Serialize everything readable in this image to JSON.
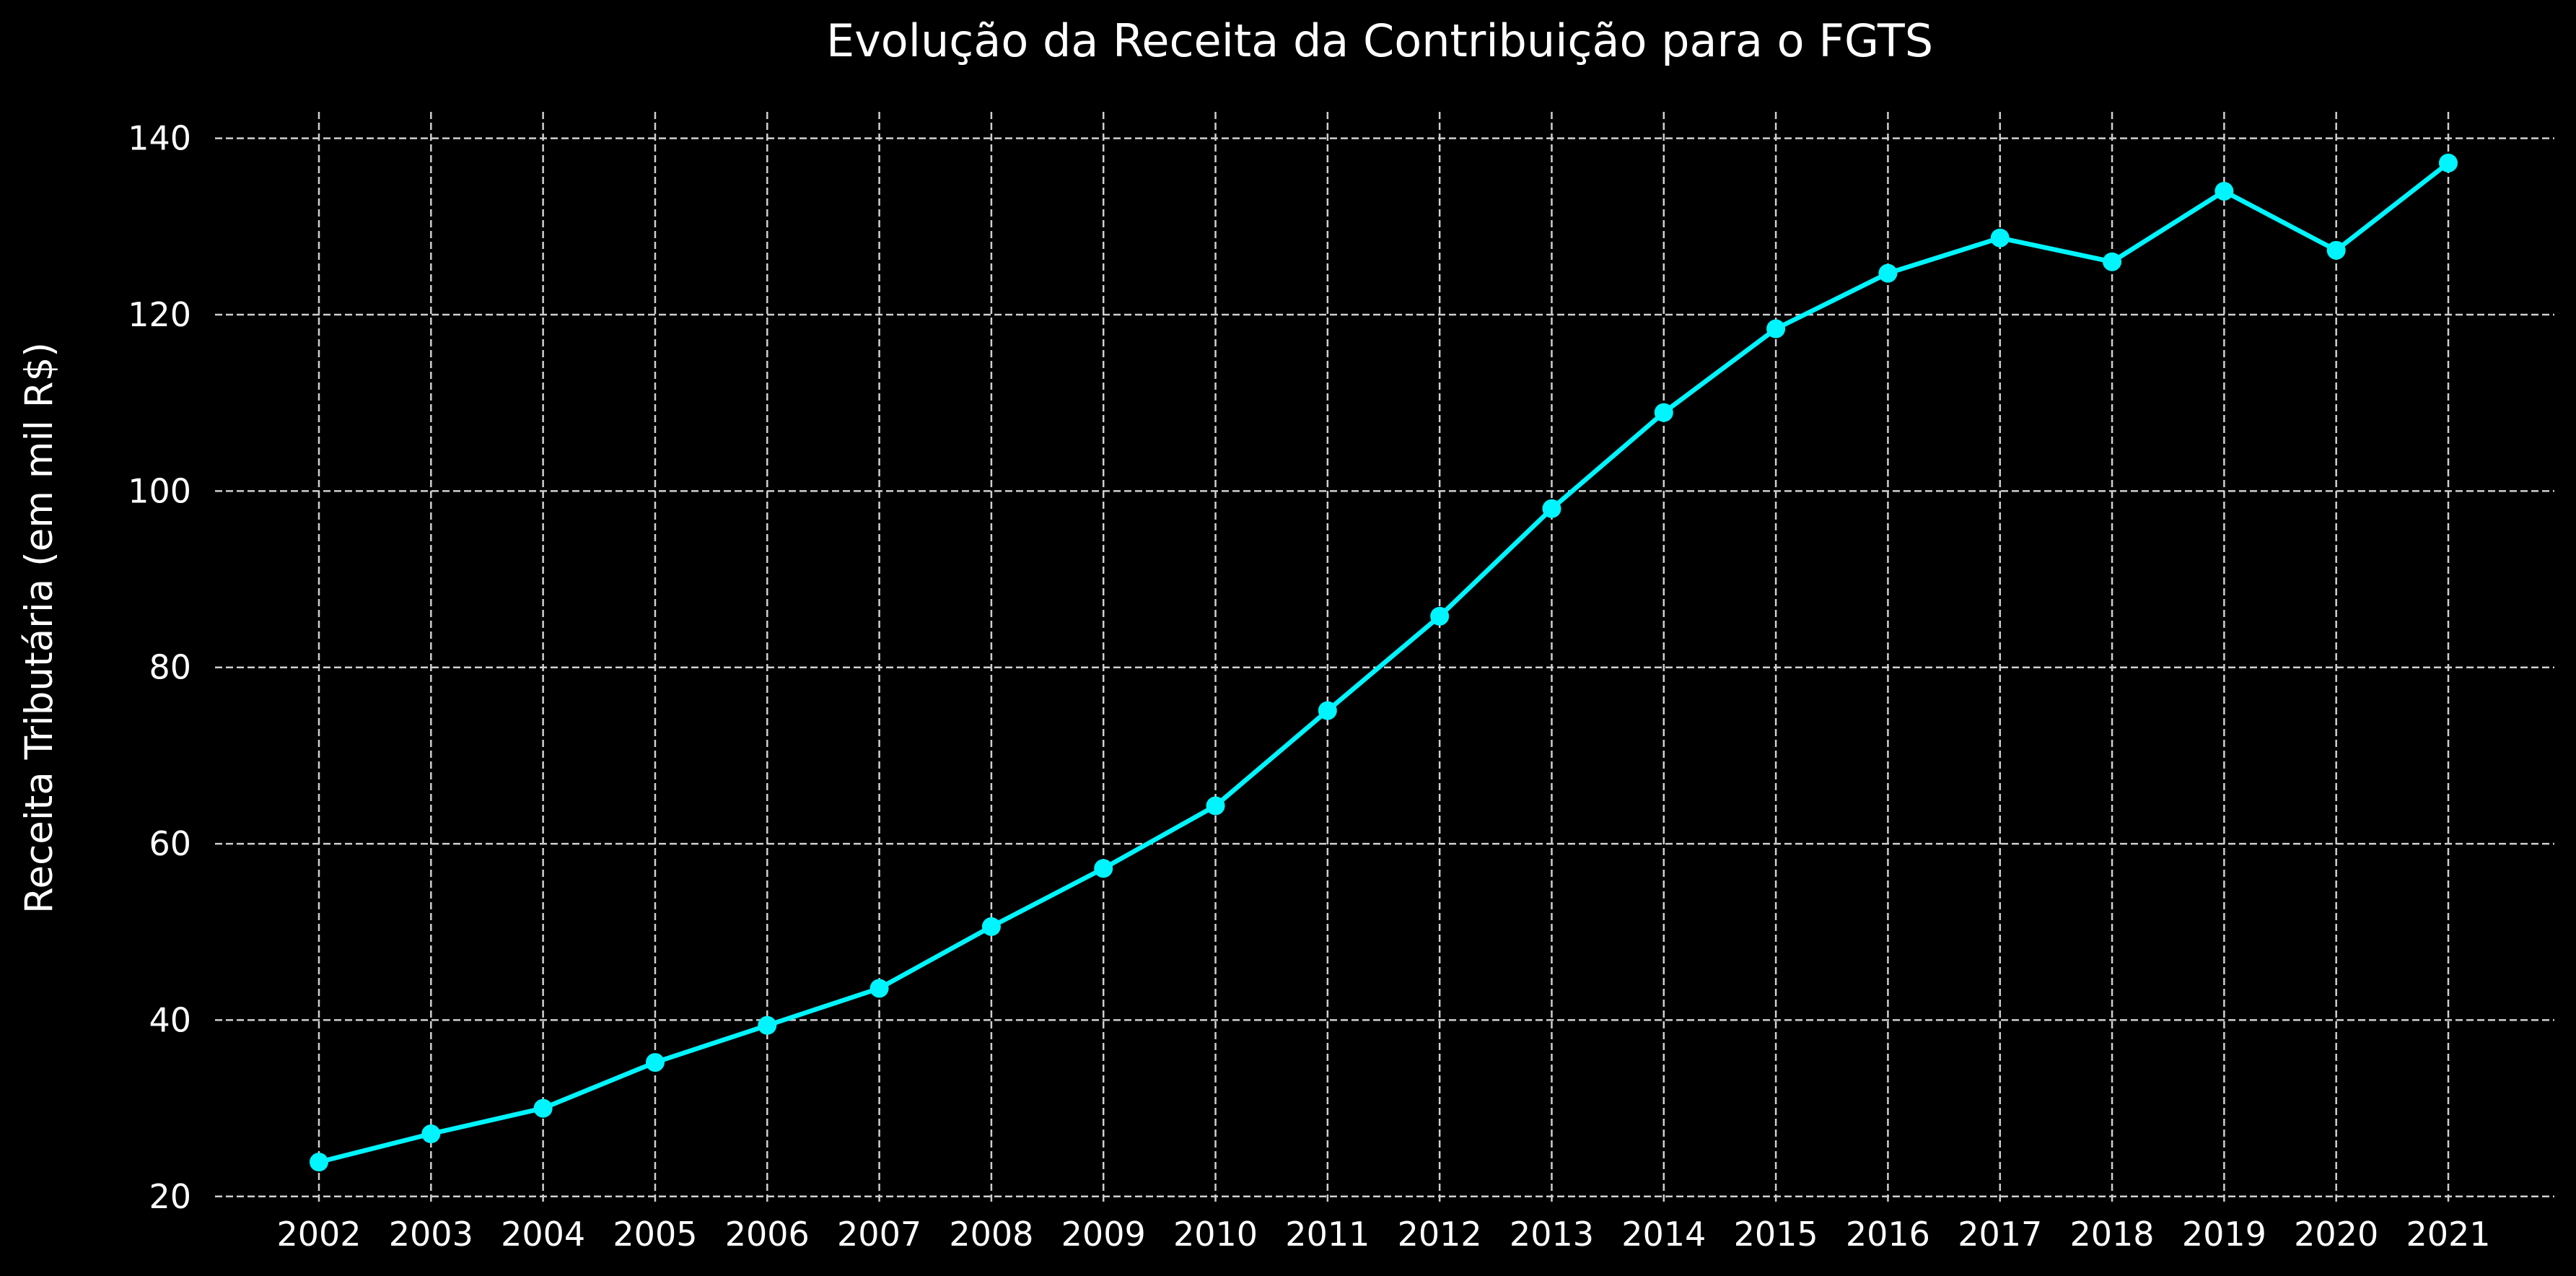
{
  "chart_data": {
    "type": "line",
    "title": "Evolução da Receita da Contribuição para o FGTS",
    "xlabel": "",
    "ylabel": "Receita Tributária (em mil R$)",
    "x": [
      "2002",
      "2003",
      "2004",
      "2005",
      "2006",
      "2007",
      "2008",
      "2009",
      "2010",
      "2011",
      "2012",
      "2013",
      "2014",
      "2015",
      "2016",
      "2017",
      "2018",
      "2019",
      "2020",
      "2021"
    ],
    "series": [
      {
        "values": [
          23.9,
          27.1,
          30.0,
          35.2,
          39.4,
          43.6,
          50.6,
          57.2,
          64.3,
          75.1,
          85.8,
          98.0,
          108.9,
          118.4,
          124.7,
          128.7,
          126.0,
          134.0,
          127.3,
          137.2
        ],
        "color": "#00f5ff"
      }
    ],
    "yticks": [
      20,
      40,
      60,
      80,
      100,
      120,
      140
    ],
    "ylim": [
      19,
      143
    ],
    "grid": true,
    "background": "#000000"
  }
}
